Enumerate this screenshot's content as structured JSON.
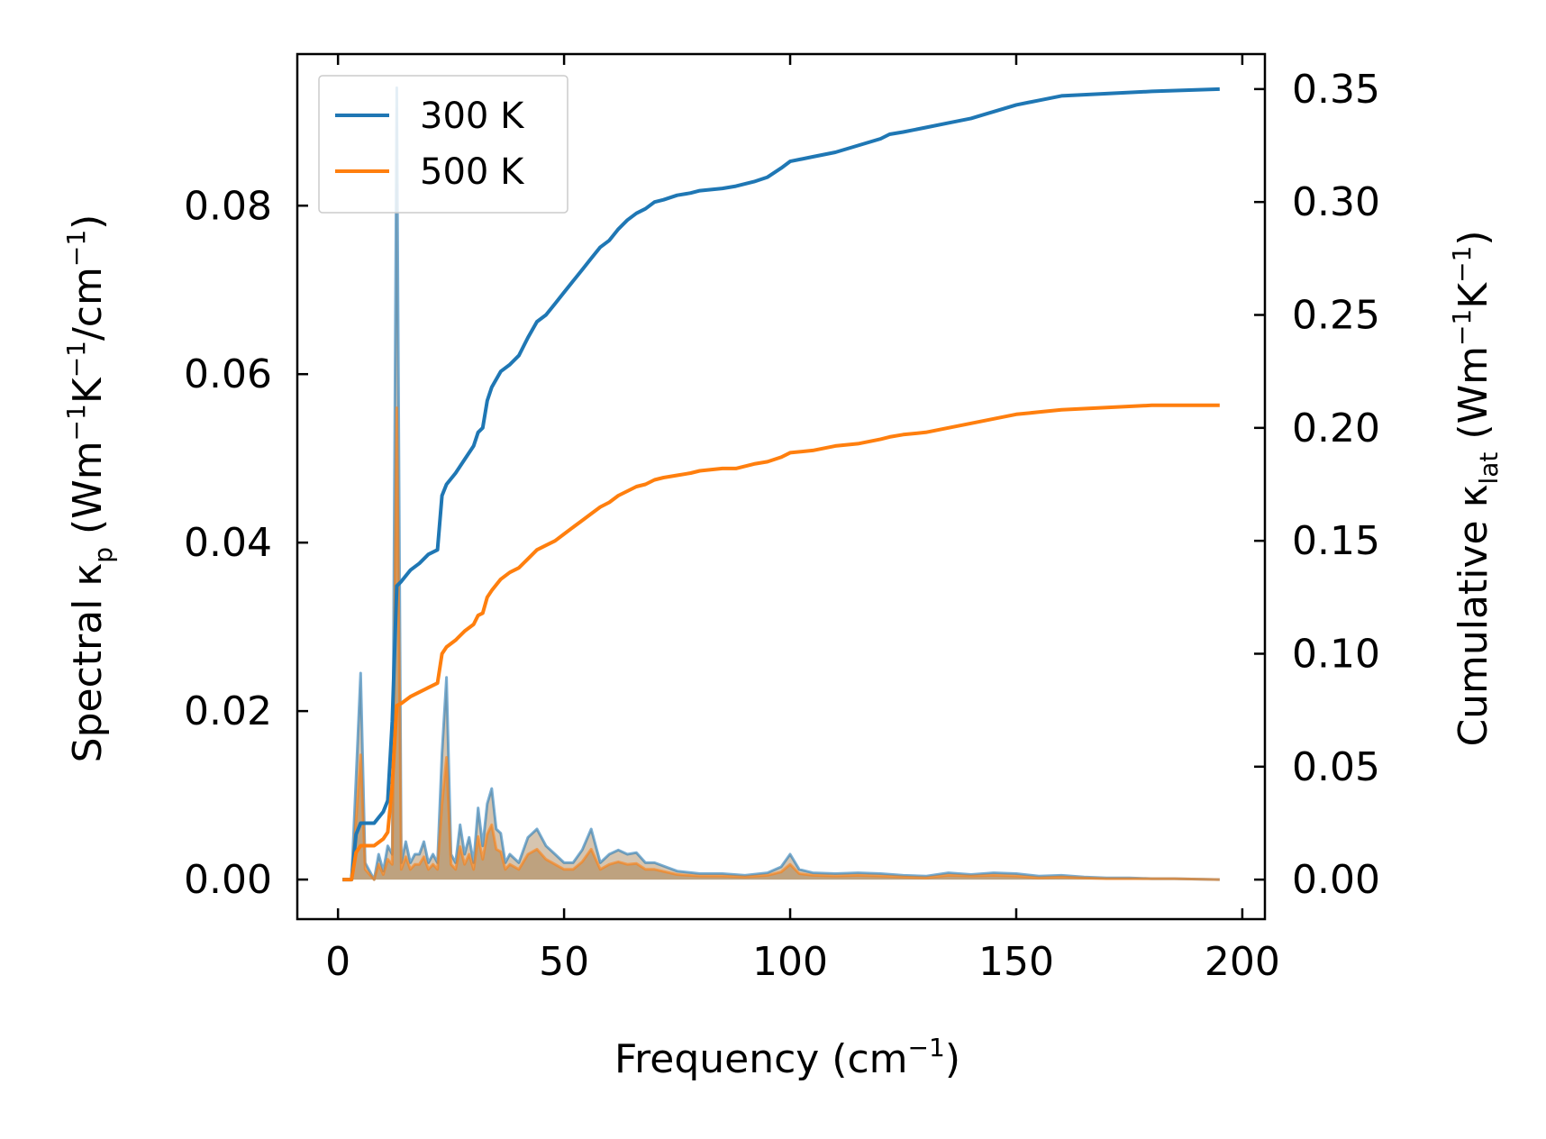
{
  "chart_data": {
    "type": "line",
    "xlabel": {
      "main": "Frequency (cm",
      "sup": "−1",
      "close": ")"
    },
    "ylabel_left": {
      "a": "Spectral κ",
      "sub": "p",
      "b": " (Wm",
      "s1": "−1",
      "c": "K",
      "s2": "−1",
      "d": "/cm",
      "s3": "−1",
      "e": ")"
    },
    "ylabel_right": {
      "a": "Cumulative κ",
      "sub": "lat",
      "b": " (Wm",
      "s1": "−1",
      "c": "K",
      "s2": "−1",
      "d": ")"
    },
    "xlim": [
      -9,
      205
    ],
    "ylim_left": [
      -0.0047,
      0.098
    ],
    "ylim_right": [
      -0.0175,
      0.3655
    ],
    "x_ticks": [
      0,
      50,
      100,
      150,
      200
    ],
    "x_tick_labels": [
      "0",
      "50",
      "100",
      "150",
      "200"
    ],
    "y_left_ticks": [
      0.0,
      0.02,
      0.04,
      0.06,
      0.08
    ],
    "y_left_tick_labels": [
      "0.00",
      "0.02",
      "0.04",
      "0.06",
      "0.08"
    ],
    "y_right_ticks": [
      0.0,
      0.05,
      0.1,
      0.15,
      0.2,
      0.25,
      0.3,
      0.35
    ],
    "y_right_tick_labels": [
      "0.00",
      "0.05",
      "0.10",
      "0.15",
      "0.20",
      "0.25",
      "0.30",
      "0.35"
    ],
    "legend": {
      "position": "top-left",
      "entries": [
        "300 K",
        "500 K"
      ]
    },
    "colors": {
      "t300": "#1f77b4",
      "t500": "#ff7f0e",
      "spectral_fill": "#b5956f"
    },
    "series_cumulative": [
      {
        "name": "300 K",
        "x": [
          1,
          3,
          4,
          5,
          8,
          10,
          11,
          12,
          13,
          14,
          16,
          18,
          20,
          22,
          23,
          24,
          26,
          28,
          30,
          31,
          32,
          33,
          34,
          36,
          38,
          40,
          42,
          44,
          46,
          48,
          50,
          52,
          54,
          56,
          58,
          60,
          62,
          64,
          66,
          68,
          70,
          72,
          75,
          78,
          80,
          85,
          88,
          92,
          95,
          98,
          100,
          105,
          110,
          115,
          120,
          122,
          125,
          130,
          135,
          140,
          145,
          150,
          155,
          160,
          170,
          180,
          195
        ],
        "y": [
          0.0,
          0.0,
          0.02,
          0.025,
          0.025,
          0.03,
          0.035,
          0.07,
          0.13,
          0.132,
          0.137,
          0.14,
          0.144,
          0.146,
          0.17,
          0.175,
          0.18,
          0.186,
          0.192,
          0.198,
          0.2,
          0.212,
          0.218,
          0.225,
          0.228,
          0.232,
          0.24,
          0.247,
          0.25,
          0.255,
          0.26,
          0.265,
          0.27,
          0.275,
          0.28,
          0.283,
          0.288,
          0.292,
          0.295,
          0.297,
          0.3,
          0.301,
          0.303,
          0.304,
          0.305,
          0.306,
          0.307,
          0.309,
          0.311,
          0.315,
          0.318,
          0.32,
          0.322,
          0.325,
          0.328,
          0.33,
          0.331,
          0.333,
          0.335,
          0.337,
          0.34,
          0.343,
          0.345,
          0.347,
          0.348,
          0.349,
          0.35
        ]
      },
      {
        "name": "500 K",
        "x": [
          1,
          3,
          4,
          5,
          8,
          10,
          11,
          12,
          13,
          14,
          16,
          18,
          20,
          22,
          23,
          24,
          26,
          28,
          30,
          31,
          32,
          33,
          34,
          36,
          38,
          40,
          42,
          44,
          46,
          48,
          50,
          52,
          54,
          56,
          58,
          60,
          62,
          64,
          66,
          68,
          70,
          72,
          75,
          78,
          80,
          85,
          88,
          92,
          95,
          98,
          100,
          105,
          110,
          115,
          120,
          122,
          125,
          130,
          135,
          140,
          145,
          150,
          155,
          160,
          170,
          180,
          195
        ],
        "y": [
          0.0,
          0.0,
          0.012,
          0.015,
          0.015,
          0.018,
          0.021,
          0.042,
          0.077,
          0.078,
          0.081,
          0.083,
          0.085,
          0.087,
          0.1,
          0.103,
          0.106,
          0.11,
          0.113,
          0.117,
          0.118,
          0.125,
          0.128,
          0.133,
          0.136,
          0.138,
          0.142,
          0.146,
          0.148,
          0.15,
          0.153,
          0.156,
          0.159,
          0.162,
          0.165,
          0.167,
          0.17,
          0.172,
          0.174,
          0.175,
          0.177,
          0.178,
          0.179,
          0.18,
          0.181,
          0.182,
          0.182,
          0.184,
          0.185,
          0.187,
          0.189,
          0.19,
          0.192,
          0.193,
          0.195,
          0.196,
          0.197,
          0.198,
          0.2,
          0.202,
          0.204,
          0.206,
          0.207,
          0.208,
          0.209,
          0.21,
          0.21
        ]
      }
    ],
    "series_spectral": [
      {
        "name": "300 K",
        "x": [
          1,
          3,
          4,
          5,
          6,
          8,
          9,
          10,
          11,
          12,
          13,
          14,
          15,
          16,
          17,
          18,
          19,
          20,
          21,
          22,
          23,
          24,
          25,
          26,
          27,
          28,
          29,
          30,
          31,
          32,
          33,
          34,
          35,
          36,
          37,
          38,
          40,
          42,
          44,
          46,
          48,
          50,
          52,
          54,
          56,
          58,
          60,
          62,
          64,
          66,
          68,
          70,
          75,
          80,
          85,
          90,
          95,
          98,
          100,
          102,
          105,
          110,
          115,
          120,
          125,
          130,
          135,
          140,
          145,
          150,
          155,
          160,
          165,
          170,
          175,
          180,
          185,
          195
        ],
        "y": [
          0.0,
          0.0,
          0.012,
          0.0245,
          0.002,
          0.0,
          0.003,
          0.001,
          0.004,
          0.003,
          0.094,
          0.002,
          0.0045,
          0.002,
          0.003,
          0.003,
          0.0045,
          0.002,
          0.003,
          0.002,
          0.015,
          0.024,
          0.003,
          0.002,
          0.0065,
          0.003,
          0.005,
          0.002,
          0.0085,
          0.004,
          0.009,
          0.0108,
          0.006,
          0.0055,
          0.002,
          0.003,
          0.002,
          0.005,
          0.006,
          0.004,
          0.003,
          0.002,
          0.002,
          0.0035,
          0.006,
          0.002,
          0.003,
          0.0035,
          0.003,
          0.0032,
          0.002,
          0.002,
          0.001,
          0.0007,
          0.0007,
          0.0005,
          0.0008,
          0.0015,
          0.003,
          0.0012,
          0.0008,
          0.0007,
          0.0008,
          0.0007,
          0.0005,
          0.0004,
          0.0008,
          0.0006,
          0.0008,
          0.0007,
          0.0004,
          0.0005,
          0.0003,
          0.0002,
          0.0002,
          0.0001,
          0.0001,
          0.0
        ]
      },
      {
        "name": "500 K",
        "x": [
          1,
          3,
          4,
          5,
          6,
          8,
          9,
          10,
          11,
          12,
          13,
          14,
          15,
          16,
          17,
          18,
          19,
          20,
          21,
          22,
          23,
          24,
          25,
          26,
          27,
          28,
          29,
          30,
          31,
          32,
          33,
          34,
          35,
          36,
          37,
          38,
          40,
          42,
          44,
          46,
          48,
          50,
          52,
          54,
          56,
          58,
          60,
          62,
          64,
          66,
          68,
          70,
          75,
          80,
          85,
          90,
          95,
          98,
          100,
          102,
          105,
          110,
          115,
          120,
          125,
          130,
          135,
          140,
          145,
          150,
          155,
          160,
          165,
          170,
          175,
          180,
          185,
          195
        ],
        "y": [
          0.0,
          0.0,
          0.007,
          0.0148,
          0.0012,
          0.0,
          0.0018,
          0.0006,
          0.0024,
          0.0018,
          0.056,
          0.0012,
          0.0027,
          0.0012,
          0.0018,
          0.0018,
          0.0027,
          0.0012,
          0.0018,
          0.0012,
          0.009,
          0.0145,
          0.0018,
          0.0012,
          0.0039,
          0.0018,
          0.003,
          0.0012,
          0.0051,
          0.0024,
          0.0054,
          0.0065,
          0.0036,
          0.0033,
          0.0012,
          0.0018,
          0.0012,
          0.003,
          0.0036,
          0.0024,
          0.0018,
          0.0012,
          0.0012,
          0.0021,
          0.0036,
          0.0012,
          0.0018,
          0.0021,
          0.0018,
          0.0019,
          0.0012,
          0.0012,
          0.0006,
          0.0004,
          0.0004,
          0.0003,
          0.0005,
          0.0009,
          0.0018,
          0.0007,
          0.0005,
          0.0004,
          0.0005,
          0.0004,
          0.0003,
          0.0002,
          0.0005,
          0.0004,
          0.0005,
          0.0004,
          0.0002,
          0.0003,
          0.0002,
          0.0001,
          0.0001,
          0.0001,
          0.0001,
          0.0
        ]
      }
    ]
  }
}
